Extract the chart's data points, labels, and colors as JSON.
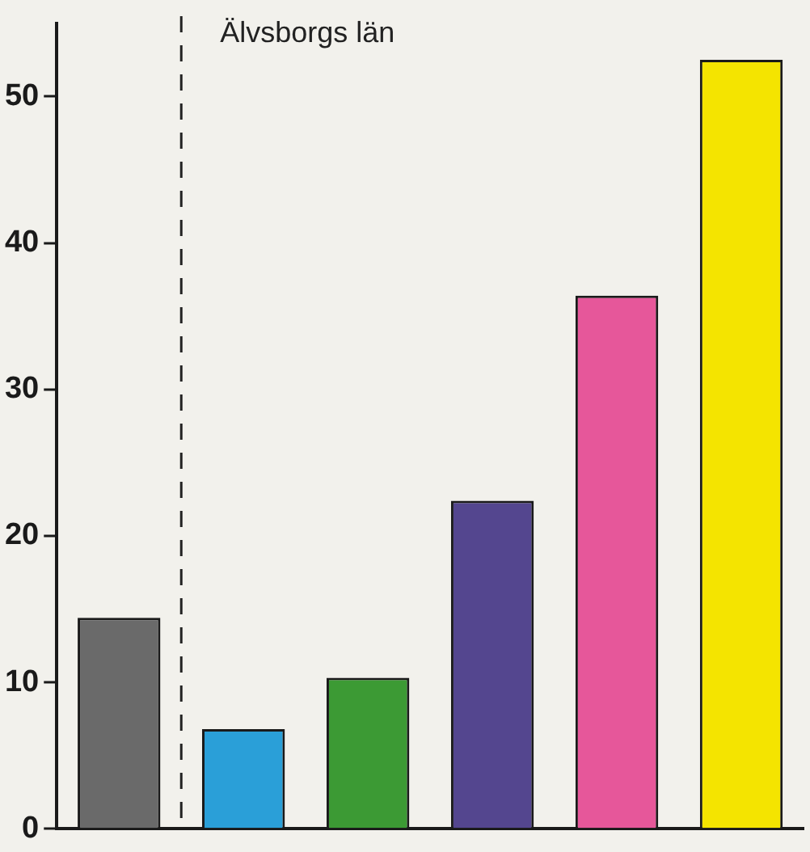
{
  "chart_data": {
    "type": "bar",
    "categories": [
      null,
      null,
      null,
      null,
      null,
      null
    ],
    "values": [
      14.4,
      6.8,
      10.3,
      22.4,
      36.4,
      52.5
    ],
    "colors": [
      "#6a6a6a",
      "#2a9fd8",
      "#3c9a34",
      "#54468f",
      "#e6579a",
      "#f4e400"
    ],
    "ylim": [
      0,
      55
    ],
    "yticks": [
      0,
      10,
      20,
      30,
      40,
      50
    ],
    "grid": false,
    "legend": false,
    "annotations": [
      "Älvsborgs län"
    ]
  }
}
